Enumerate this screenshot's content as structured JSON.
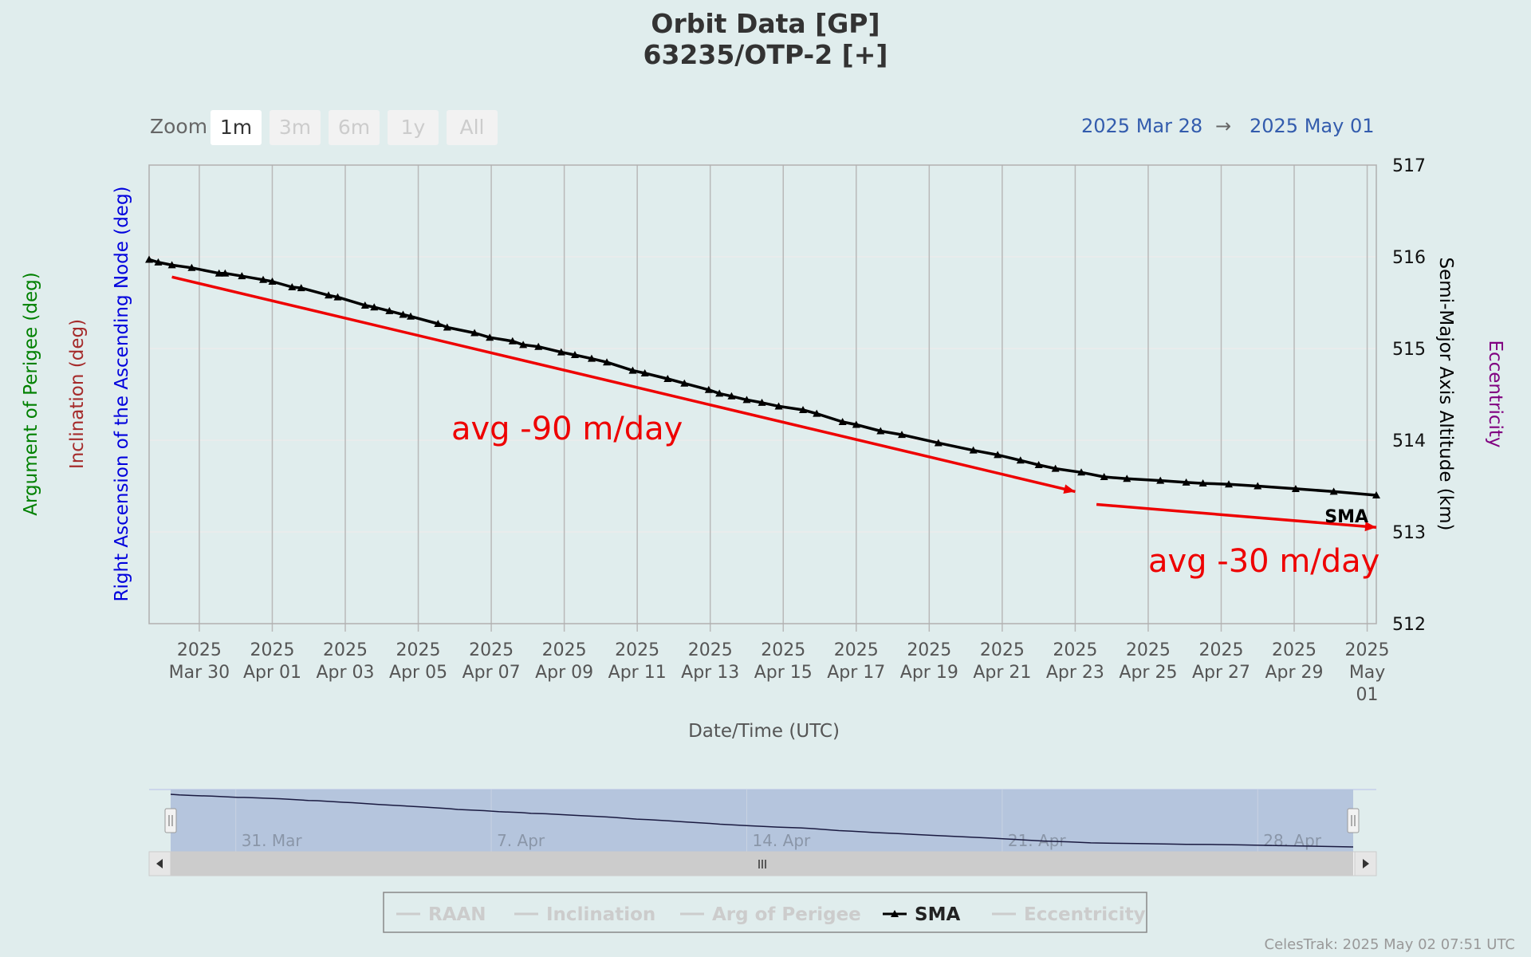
{
  "header": {
    "title": "Orbit Data [GP]",
    "subtitle": "63235/OTP-2 [+]"
  },
  "zoom": {
    "label": "Zoom",
    "buttons": [
      {
        "label": "1m",
        "active": true
      },
      {
        "label": "3m",
        "active": false
      },
      {
        "label": "6m",
        "active": false
      },
      {
        "label": "1y",
        "active": false
      },
      {
        "label": "All",
        "active": false
      }
    ]
  },
  "range": {
    "from": "2025 Mar 28",
    "arrow": "→",
    "to": "2025 May 01"
  },
  "axes": {
    "left": [
      {
        "label": "Argument of Perigee (deg)",
        "color": "#008000"
      },
      {
        "label": "Inclination (deg)",
        "color": "#a52a2a"
      },
      {
        "label": "Right Ascension of the Ascending Node (deg)",
        "color": "#0000dd"
      }
    ],
    "right_primary": {
      "label": "Semi-Major Axis Altitude (km)",
      "color": "#000000"
    },
    "right_secondary": {
      "label": "Eccentricity",
      "color": "#800080"
    },
    "x_title": "Date/Time (UTC)"
  },
  "chart_data": {
    "type": "line",
    "x_unit": "date",
    "xlim": [
      "2025-03-28 15:00",
      "2025-05-01 06:00"
    ],
    "ylim": [
      512,
      517
    ],
    "y_ticks": [
      512,
      513,
      514,
      515,
      516,
      517
    ],
    "x_ticks": [
      {
        "date": "2025-03-30",
        "top": "2025",
        "bottom": "Mar 30"
      },
      {
        "date": "2025-04-01",
        "top": "2025",
        "bottom": "Apr 01"
      },
      {
        "date": "2025-04-03",
        "top": "2025",
        "bottom": "Apr 03"
      },
      {
        "date": "2025-04-05",
        "top": "2025",
        "bottom": "Apr 05"
      },
      {
        "date": "2025-04-07",
        "top": "2025",
        "bottom": "Apr 07"
      },
      {
        "date": "2025-04-09",
        "top": "2025",
        "bottom": "Apr 09"
      },
      {
        "date": "2025-04-11",
        "top": "2025",
        "bottom": "Apr 11"
      },
      {
        "date": "2025-04-13",
        "top": "2025",
        "bottom": "Apr 13"
      },
      {
        "date": "2025-04-15",
        "top": "2025",
        "bottom": "Apr 15"
      },
      {
        "date": "2025-04-17",
        "top": "2025",
        "bottom": "Apr 17"
      },
      {
        "date": "2025-04-19",
        "top": "2025",
        "bottom": "Apr 19"
      },
      {
        "date": "2025-04-21",
        "top": "2025",
        "bottom": "Apr 21"
      },
      {
        "date": "2025-04-23",
        "top": "2025",
        "bottom": "Apr 23"
      },
      {
        "date": "2025-04-25",
        "top": "2025",
        "bottom": "Apr 25"
      },
      {
        "date": "2025-04-27",
        "top": "2025",
        "bottom": "Apr 27"
      },
      {
        "date": "2025-04-29",
        "top": "2025",
        "bottom": "Apr 29"
      },
      {
        "date": "2025-05-01",
        "top": "2025",
        "bottom": "May",
        "bottom2": "01"
      }
    ],
    "grid": true,
    "series": [
      {
        "name": "SMA",
        "color": "#000000",
        "marker": "triangle",
        "points": [
          [
            "2025-03-28 15:00",
            515.97
          ],
          [
            "2025-03-28 21:00",
            515.94
          ],
          [
            "2025-03-29 06:00",
            515.91
          ],
          [
            "2025-03-29 19:00",
            515.88
          ],
          [
            "2025-03-30 13:00",
            515.82
          ],
          [
            "2025-03-30 17:00",
            515.82
          ],
          [
            "2025-03-31 04:00",
            515.79
          ],
          [
            "2025-03-31 18:00",
            515.75
          ],
          [
            "2025-04-01 00:00",
            515.73
          ],
          [
            "2025-04-01 13:00",
            515.67
          ],
          [
            "2025-04-01 19:00",
            515.66
          ],
          [
            "2025-04-02 13:00",
            515.58
          ],
          [
            "2025-04-02 19:00",
            515.56
          ],
          [
            "2025-04-03 13:00",
            515.47
          ],
          [
            "2025-04-03 19:00",
            515.45
          ],
          [
            "2025-04-04 05:00",
            515.41
          ],
          [
            "2025-04-04 14:00",
            515.37
          ],
          [
            "2025-04-04 19:00",
            515.35
          ],
          [
            "2025-04-05 13:00",
            515.27
          ],
          [
            "2025-04-05 19:00",
            515.23
          ],
          [
            "2025-04-06 13:00",
            515.17
          ],
          [
            "2025-04-06 23:00",
            515.12
          ],
          [
            "2025-04-07 14:00",
            515.08
          ],
          [
            "2025-04-07 21:00",
            515.04
          ],
          [
            "2025-04-08 07:00",
            515.02
          ],
          [
            "2025-04-08 22:00",
            514.96
          ],
          [
            "2025-04-09 07:00",
            514.93
          ],
          [
            "2025-04-09 18:00",
            514.89
          ],
          [
            "2025-04-10 04:00",
            514.85
          ],
          [
            "2025-04-10 21:00",
            514.76
          ],
          [
            "2025-04-11 05:00",
            514.73
          ],
          [
            "2025-04-11 20:00",
            514.67
          ],
          [
            "2025-04-12 07:00",
            514.62
          ],
          [
            "2025-04-12 23:00",
            514.55
          ],
          [
            "2025-04-13 06:00",
            514.51
          ],
          [
            "2025-04-13 14:00",
            514.48
          ],
          [
            "2025-04-14 00:00",
            514.44
          ],
          [
            "2025-04-14 10:00",
            514.41
          ],
          [
            "2025-04-14 21:00",
            514.37
          ],
          [
            "2025-04-15 13:00",
            514.33
          ],
          [
            "2025-04-15 22:00",
            514.29
          ],
          [
            "2025-04-16 15:00",
            514.2
          ],
          [
            "2025-04-17 00:00",
            514.17
          ],
          [
            "2025-04-17 16:00",
            514.1
          ],
          [
            "2025-04-18 06:00",
            514.06
          ],
          [
            "2025-04-19 06:00",
            513.97
          ],
          [
            "2025-04-20 05:00",
            513.89
          ],
          [
            "2025-04-20 21:00",
            513.84
          ],
          [
            "2025-04-21 12:00",
            513.78
          ],
          [
            "2025-04-22 00:00",
            513.73
          ],
          [
            "2025-04-22 11:00",
            513.69
          ],
          [
            "2025-04-23 04:00",
            513.65
          ],
          [
            "2025-04-23 19:00",
            513.6
          ],
          [
            "2025-04-24 10:00",
            513.58
          ],
          [
            "2025-04-25 08:00",
            513.56
          ],
          [
            "2025-04-26 01:00",
            513.54
          ],
          [
            "2025-04-26 12:00",
            513.53
          ],
          [
            "2025-04-27 05:00",
            513.52
          ],
          [
            "2025-04-28 00:00",
            513.5
          ],
          [
            "2025-04-29 01:00",
            513.47
          ],
          [
            "2025-04-30 02:00",
            513.44
          ],
          [
            "2025-05-01 06:00",
            513.4
          ]
        ]
      }
    ],
    "series_label": "SMA",
    "trend_lines": [
      {
        "label": "avg -90 m/day",
        "color": "#ee0000",
        "from": [
          "2025-03-29 06:00",
          515.78
        ],
        "to": [
          "2025-04-23 00:00",
          513.44
        ]
      },
      {
        "label": "avg -30 m/day",
        "color": "#ee0000",
        "from": [
          "2025-04-23 14:00",
          513.3
        ],
        "to": [
          "2025-05-01 06:00",
          513.05
        ]
      }
    ],
    "navigator": {
      "tick_labels": [
        {
          "date": "2025-03-31",
          "label": "31. Mar"
        },
        {
          "date": "2025-04-07",
          "label": "7. Apr"
        },
        {
          "date": "2025-04-14",
          "label": "14. Apr"
        },
        {
          "date": "2025-04-21",
          "label": "21. Apr"
        },
        {
          "date": "2025-04-28",
          "label": "28. Apr"
        }
      ]
    },
    "legend": {
      "position": "bottom",
      "items": [
        {
          "label": "RAAN",
          "active": false
        },
        {
          "label": "Inclination",
          "active": false
        },
        {
          "label": "Arg of Perigee",
          "active": false
        },
        {
          "label": "SMA",
          "active": true
        },
        {
          "label": "Eccentricity",
          "active": false
        }
      ]
    }
  },
  "credits": "CelesTrak: 2025 May 02 07:51 UTC"
}
